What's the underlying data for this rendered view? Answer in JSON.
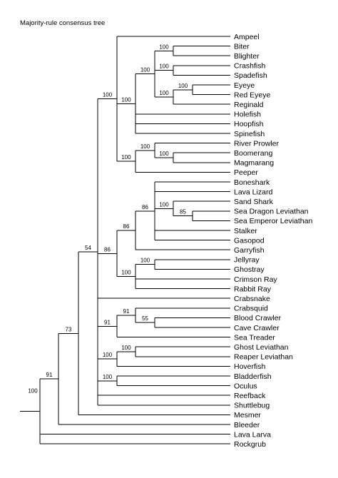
{
  "title": "Majority-rule consensus tree",
  "tree": {
    "support": "100",
    "children": [
      {
        "support": "91",
        "children": [
          {
            "support": "73",
            "children": [
              {
                "support": "54",
                "children": [
                  {
                    "support": "100",
                    "children": [
                      {
                        "name": "Ampeel"
                      },
                      {
                        "support": "100",
                        "children": [
                          {
                            "support": "100",
                            "children": [
                              {
                                "support": "100",
                                "children": [
                                  {
                                    "name": "Biter"
                                  },
                                  {
                                    "name": "Blighter"
                                  }
                                ]
                              },
                              {
                                "support": "100",
                                "children": [
                                  {
                                    "name": "Crashfish"
                                  },
                                  {
                                    "name": "Spadefish"
                                  }
                                ]
                              },
                              {
                                "support": "100",
                                "children": [
                                  {
                                    "support": "100",
                                    "children": [
                                      {
                                        "name": "Eyeye"
                                      },
                                      {
                                        "name": "Red Eyeye"
                                      }
                                    ]
                                  },
                                  {
                                    "name": "Reginald"
                                  }
                                ]
                              }
                            ]
                          },
                          {
                            "name": "Holefish"
                          },
                          {
                            "name": "Hoopfish"
                          },
                          {
                            "name": "Spinefish"
                          }
                        ]
                      },
                      {
                        "support": "100",
                        "children": [
                          {
                            "support": "100",
                            "children": [
                              {
                                "name": "River Prowler"
                              },
                              {
                                "support": "100",
                                "children": [
                                  {
                                    "name": "Boomerang"
                                  },
                                  {
                                    "name": "Magmarang"
                                  }
                                ]
                              }
                            ]
                          },
                          {
                            "name": "Peeper"
                          }
                        ]
                      }
                    ]
                  },
                  {
                    "support": "86",
                    "children": [
                      {
                        "support": "86",
                        "children": [
                          {
                            "support": "86",
                            "children": [
                              {
                                "name": "Boneshark"
                              },
                              {
                                "name": "Lava Lizard"
                              },
                              {
                                "support": "100",
                                "children": [
                                  {
                                    "name": "Sand Shark"
                                  },
                                  {
                                    "support": "85",
                                    "children": [
                                      {
                                        "name": "Sea Dragon Leviathan"
                                      },
                                      {
                                        "name": "Sea Emperor Leviathan"
                                      }
                                    ]
                                  }
                                ]
                              },
                              {
                                "name": "Stalker"
                              },
                              {
                                "name": "Gasopod"
                              }
                            ]
                          },
                          {
                            "name": "Garryfish"
                          }
                        ]
                      },
                      {
                        "support": "100",
                        "children": [
                          {
                            "support": "100",
                            "children": [
                              {
                                "name": "Jellyray"
                              },
                              {
                                "name": "Ghostray"
                              }
                            ]
                          },
                          {
                            "name": "Crimson Ray"
                          },
                          {
                            "name": "Rabbit Ray"
                          }
                        ]
                      }
                    ]
                  },
                  {
                    "name": "Crabsnake"
                  },
                  {
                    "support": "91",
                    "children": [
                      {
                        "support": "91",
                        "children": [
                          {
                            "name": "Crabsquid"
                          },
                          {
                            "support": "55",
                            "children": [
                              {
                                "name": "Blood Crawler"
                              },
                              {
                                "name": "Cave Crawler"
                              }
                            ]
                          }
                        ]
                      },
                      {
                        "name": "Sea Treader"
                      }
                    ]
                  },
                  {
                    "support": "100",
                    "children": [
                      {
                        "support": "100",
                        "children": [
                          {
                            "name": "Ghost Leviathan"
                          },
                          {
                            "name": "Reaper Leviathan"
                          }
                        ]
                      },
                      {
                        "name": "Hoverfish"
                      }
                    ]
                  },
                  {
                    "support": "100",
                    "children": [
                      {
                        "name": "Bladderfish"
                      },
                      {
                        "name": "Oculus"
                      }
                    ]
                  },
                  {
                    "name": "Reefback"
                  },
                  {
                    "name": "Shuttlebug"
                  }
                ]
              },
              {
                "name": "Mesmer"
              }
            ]
          },
          {
            "name": "Bleeder"
          }
        ]
      },
      {
        "name": "Lava Larva"
      },
      {
        "name": "Rockgrub"
      }
    ]
  }
}
